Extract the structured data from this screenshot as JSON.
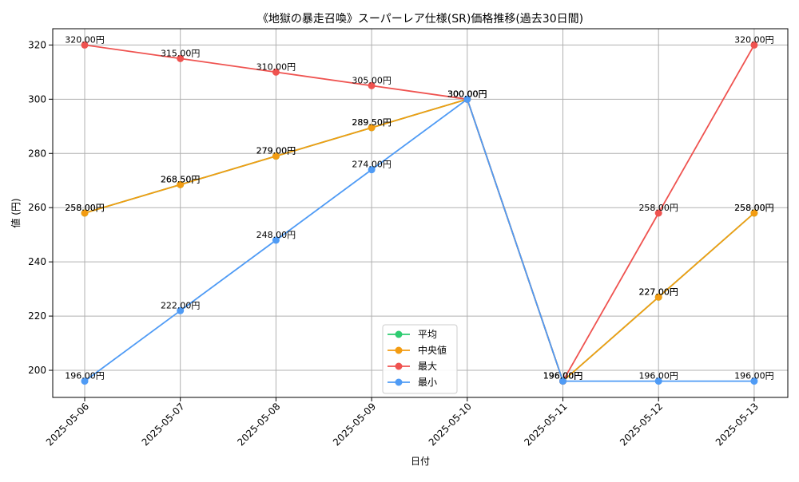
{
  "chart_data": {
    "type": "line",
    "title": "《地獄の暴走召喚》スーパーレア仕様(SR)価格推移(過去30日間)",
    "xlabel": "日付",
    "ylabel": "値 (円)",
    "ylim": [
      190,
      326
    ],
    "yticks": [
      200,
      220,
      240,
      260,
      280,
      300,
      320
    ],
    "grid": true,
    "legend_position": "lower-center",
    "label_suffix": "円",
    "categories": [
      "2025-05-06",
      "2025-05-07",
      "2025-05-08",
      "2025-05-09",
      "2025-05-10",
      "2025-05-11",
      "2025-05-12",
      "2025-05-13"
    ],
    "series": [
      {
        "key": "mean",
        "name": "平均",
        "color": "#2ecc71",
        "values": [
          258.0,
          268.5,
          279.0,
          289.5,
          300.0,
          196.0,
          227.0,
          258.0
        ]
      },
      {
        "key": "median",
        "name": "中央値",
        "color": "#f39c12",
        "values": [
          258.0,
          268.5,
          279.0,
          289.5,
          300.0,
          196.0,
          227.0,
          258.0
        ]
      },
      {
        "key": "max",
        "name": "最大",
        "color": "#ef5350",
        "values": [
          320.0,
          315.0,
          310.0,
          305.0,
          300.0,
          196.0,
          258.0,
          320.0
        ]
      },
      {
        "key": "min",
        "name": "最小",
        "color": "#4f9bf5",
        "values": [
          196.0,
          222.0,
          248.0,
          274.0,
          300.0,
          196.0,
          196.0,
          196.0
        ]
      }
    ]
  }
}
